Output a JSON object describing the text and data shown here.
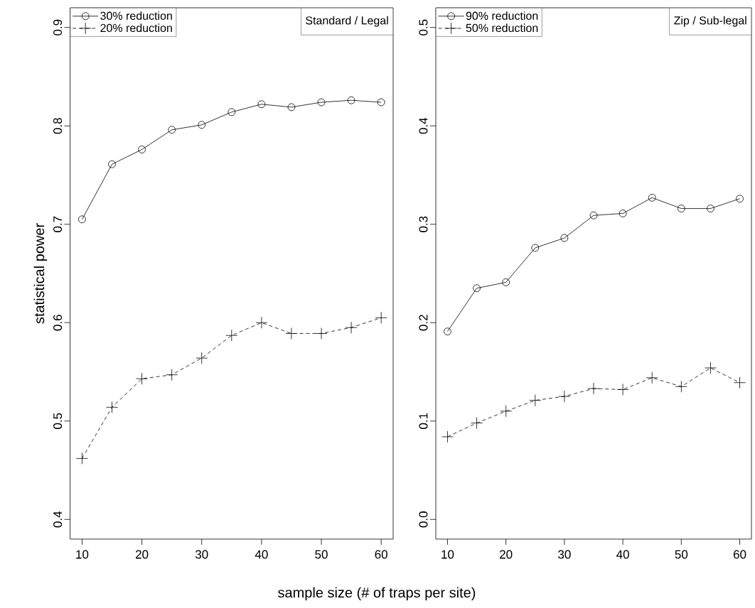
{
  "chart_data": [
    {
      "type": "line",
      "title": "Standard / Legal",
      "ylabel": "statistical power",
      "xlabel": "sample size (# of traps per site)",
      "x": [
        10,
        15,
        20,
        25,
        30,
        35,
        40,
        45,
        50,
        55,
        60
      ],
      "series": [
        {
          "name": "30% reduction",
          "color": "#000000",
          "marker": "circle",
          "line_style": "solid",
          "values": [
            0.705,
            0.761,
            0.776,
            0.796,
            0.801,
            0.814,
            0.822,
            0.819,
            0.824,
            0.826,
            0.824
          ]
        },
        {
          "name": "20% reduction",
          "color": "#000000",
          "marker": "cross",
          "line_style": "dashed",
          "values": [
            0.462,
            0.514,
            0.543,
            0.547,
            0.564,
            0.587,
            0.6,
            0.589,
            0.589,
            0.595,
            0.605
          ]
        }
      ],
      "xlim": [
        8,
        62
      ],
      "xticks": [
        10,
        20,
        30,
        40,
        50,
        60
      ],
      "ylim": [
        0.38,
        0.92
      ],
      "yticks": [
        0.4,
        0.5,
        0.6,
        0.7,
        0.8,
        0.9
      ],
      "legend": "top left",
      "grid": false
    },
    {
      "type": "line",
      "title": "Zip / Sub-legal",
      "x": [
        10,
        15,
        20,
        25,
        30,
        35,
        40,
        45,
        50,
        55,
        60
      ],
      "series": [
        {
          "name": "90% reduction",
          "color": "#000000",
          "marker": "circle",
          "line_style": "solid",
          "values": [
            0.191,
            0.235,
            0.241,
            0.276,
            0.286,
            0.309,
            0.311,
            0.327,
            0.316,
            0.316,
            0.326
          ]
        },
        {
          "name": "50% reduction",
          "color": "#000000",
          "marker": "cross",
          "line_style": "dashed",
          "values": [
            0.084,
            0.098,
            0.11,
            0.121,
            0.125,
            0.133,
            0.132,
            0.144,
            0.135,
            0.154,
            0.139
          ]
        }
      ],
      "xlim": [
        8,
        62
      ],
      "xticks": [
        10,
        20,
        30,
        40,
        50,
        60
      ],
      "ylim": [
        -0.02,
        0.52
      ],
      "yticks": [
        {
          "value": 0,
          "label": "0.0"
        },
        0.1,
        0.2,
        0.3,
        0.4,
        0.5
      ],
      "legend": "top left",
      "grid": false
    }
  ]
}
